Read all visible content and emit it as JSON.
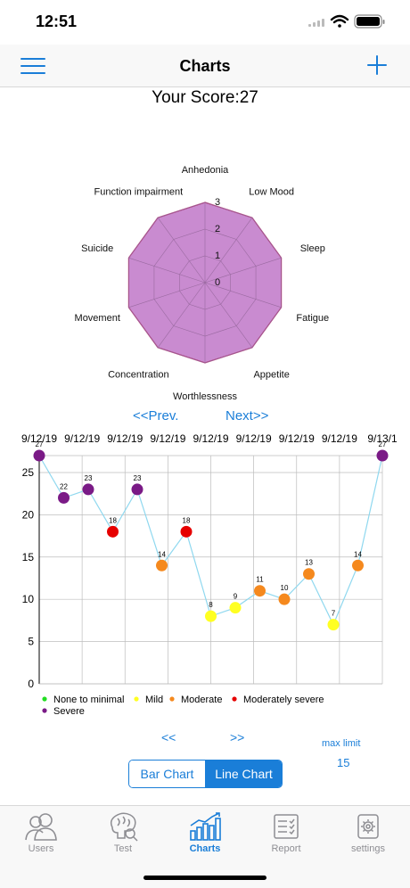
{
  "status_bar": {
    "time": "12:51"
  },
  "nav": {
    "title": "Charts",
    "menu_icon": "hamburger-icon",
    "add_icon": "plus-icon"
  },
  "score": {
    "text": "Your Score:27"
  },
  "radar": {
    "axes": [
      "Anhedonia",
      "Low Mood",
      "Sleep",
      "Fatigue",
      "Appetite",
      "Worthlessness",
      "Concentration",
      "Movement",
      "Suicide",
      "Function impairment"
    ],
    "values": [
      3,
      3,
      3,
      3,
      3,
      3,
      3,
      3,
      3,
      3
    ],
    "ticks": [
      "0",
      "1",
      "2",
      "3"
    ],
    "max": 3,
    "fill_color": "#c98bd0",
    "stroke_color": "#b0306a"
  },
  "pager": {
    "prev": "<<Prev.",
    "next": "Next>>"
  },
  "chart_data": {
    "type": "line",
    "x": [
      "9/12/19",
      "9/12/19",
      "9/12/19",
      "9/12/19",
      "9/12/19",
      "9/12/19",
      "9/12/19",
      "9/12/19",
      "9/12/19",
      "9/12/19",
      "9/12/19",
      "9/12/19",
      "9/12/19",
      "9/12/19",
      "9/12/19"
    ],
    "x_tick_labels": [
      "9/12/19",
      "9/12/19",
      "9/12/19",
      "9/12/19",
      "9/12/19",
      "9/12/19",
      "9/12/19",
      "9/12/19",
      "9/13/1"
    ],
    "values": [
      27,
      22,
      23,
      18,
      23,
      14,
      18,
      8,
      9,
      11,
      10,
      13,
      7,
      14,
      27
    ],
    "point_labels": [
      "27",
      "22",
      "23",
      "18",
      "23",
      "14",
      "18",
      "8",
      "9",
      "11",
      "10",
      "13",
      "7",
      "14",
      "27"
    ],
    "severity": [
      "severe",
      "severe",
      "severe",
      "moderately_severe",
      "severe",
      "moderate",
      "moderately_severe",
      "mild",
      "mild",
      "moderate",
      "moderate",
      "moderate",
      "mild",
      "moderate",
      "severe"
    ],
    "ylim": [
      0,
      27
    ],
    "yticks": [
      0,
      5,
      10,
      15,
      20,
      25
    ],
    "grid": true,
    "line_color": "#8fd8ef",
    "legend": [
      {
        "key": "none_minimal",
        "label": "None to minimal",
        "color": "#22dd22"
      },
      {
        "key": "mild",
        "label": "Mild",
        "color": "#ffff22"
      },
      {
        "key": "moderate",
        "label": "Moderate",
        "color": "#f5891e"
      },
      {
        "key": "moderately_severe",
        "label": "Moderately severe",
        "color": "#e60000"
      },
      {
        "key": "severe",
        "label": "Severe",
        "color": "#7a1a86"
      }
    ],
    "legend_position": "bottom-left"
  },
  "controls": {
    "small_prev": "<<",
    "small_next": ">>",
    "max_limit_label": "max limit",
    "max_limit_value": "15",
    "segments": [
      "Bar Chart",
      "Line Chart"
    ],
    "selected_segment": "Line Chart"
  },
  "tabs": [
    {
      "key": "users",
      "label": "Users",
      "icon": "users-icon"
    },
    {
      "key": "test",
      "label": "Test",
      "icon": "brain-icon"
    },
    {
      "key": "charts",
      "label": "Charts",
      "icon": "chart-icon",
      "active": true
    },
    {
      "key": "report",
      "label": "Report",
      "icon": "report-icon"
    },
    {
      "key": "settings",
      "label": "settings",
      "icon": "gear-icon"
    }
  ],
  "colors": {
    "accent": "#1a7ed8",
    "inactive": "#8e8e93"
  }
}
